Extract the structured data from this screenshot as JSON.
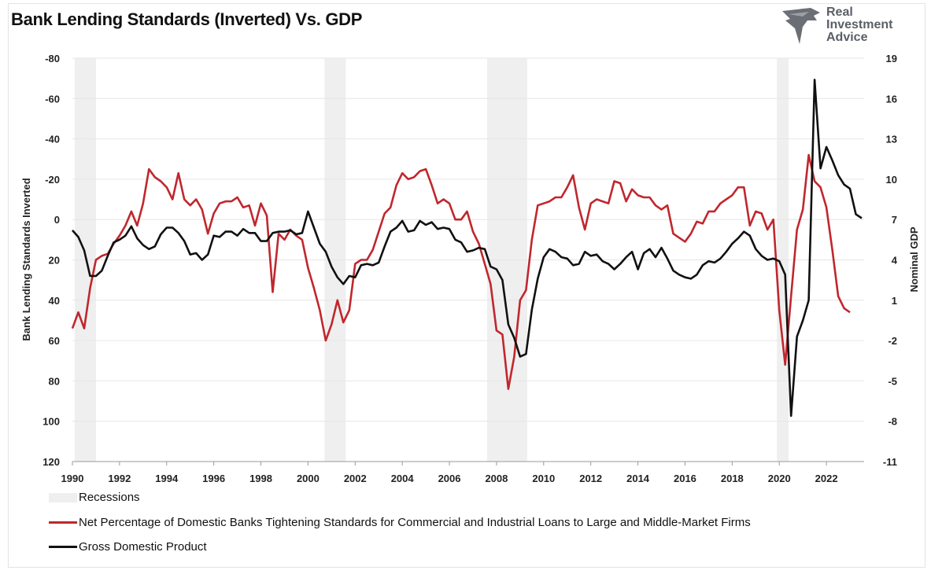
{
  "brand": {
    "line1": "Real",
    "line2": "Investment",
    "line3": "Advice"
  },
  "chart_data": {
    "type": "line",
    "title": "Bank Lending Standards (Inverted) Vs. GDP",
    "ylabel_left": "Bank Lending Standards Inverted",
    "ylabel_right": "Nominal GDP",
    "left_axis": {
      "inverted": true,
      "ylim": [
        -80,
        120
      ],
      "ticks": [
        "-80",
        "-60",
        "-40",
        "-20",
        "0",
        "20",
        "40",
        "60",
        "80",
        "100",
        "120"
      ]
    },
    "right_axis": {
      "ylim": [
        -11,
        19
      ],
      "ticks": [
        "19",
        "16",
        "13",
        "10",
        "7",
        "4",
        "1",
        "-2",
        "-5",
        "-8",
        "-11"
      ]
    },
    "x_range": [
      1990,
      2023.6
    ],
    "x_ticks": [
      "1990",
      "1992",
      "1994",
      "1996",
      "1998",
      "2000",
      "2002",
      "2004",
      "2006",
      "2008",
      "2010",
      "2012",
      "2014",
      "2016",
      "2018",
      "2020",
      "2022"
    ],
    "grid": "horizontal",
    "legend_position": "bottom",
    "legend": [
      "Recessions",
      "Net Percentage of Domestic Banks Tightening Standards for Commercial and Industrial Loans to Large and Middle-Market Firms",
      "Gross Domestic Product"
    ],
    "recessions": [
      [
        1990.1,
        1991.0
      ],
      [
        2000.7,
        2001.6
      ],
      [
        2007.6,
        2009.3
      ],
      [
        2019.9,
        2020.4
      ]
    ],
    "colors": {
      "lending": "#c0272d",
      "gdp": "#111111",
      "recession": "#efefef",
      "grid": "#e6e6e6"
    },
    "series": [
      {
        "name": "Net Percentage of Domestic Banks Tightening Standards for Commercial and Industrial Loans to Large and Middle-Market Firms",
        "axis": "left",
        "points": [
          [
            1990.0,
            54
          ],
          [
            1990.25,
            46
          ],
          [
            1990.5,
            54
          ],
          [
            1990.75,
            34
          ],
          [
            1991.0,
            20
          ],
          [
            1991.25,
            18
          ],
          [
            1991.5,
            17
          ],
          [
            1991.75,
            12
          ],
          [
            1992.0,
            8
          ],
          [
            1992.25,
            3
          ],
          [
            1992.5,
            -4
          ],
          [
            1992.75,
            3
          ],
          [
            1993.0,
            -8
          ],
          [
            1993.25,
            -25
          ],
          [
            1993.5,
            -21
          ],
          [
            1993.75,
            -19
          ],
          [
            1994.0,
            -16
          ],
          [
            1994.25,
            -10
          ],
          [
            1994.5,
            -23
          ],
          [
            1994.75,
            -10
          ],
          [
            1995.0,
            -7
          ],
          [
            1995.25,
            -10
          ],
          [
            1995.5,
            -5
          ],
          [
            1995.75,
            7
          ],
          [
            1996.0,
            -3
          ],
          [
            1996.25,
            -8
          ],
          [
            1996.5,
            -9
          ],
          [
            1996.75,
            -9
          ],
          [
            1997.0,
            -11
          ],
          [
            1997.25,
            -6
          ],
          [
            1997.5,
            -7
          ],
          [
            1997.75,
            3
          ],
          [
            1998.0,
            -8
          ],
          [
            1998.25,
            -2
          ],
          [
            1998.5,
            36
          ],
          [
            1998.75,
            7
          ],
          [
            1999.0,
            10
          ],
          [
            1999.25,
            5
          ],
          [
            1999.5,
            8
          ],
          [
            1999.75,
            10
          ],
          [
            2000.0,
            24
          ],
          [
            2000.25,
            34
          ],
          [
            2000.5,
            45
          ],
          [
            2000.75,
            60
          ],
          [
            2001.0,
            52
          ],
          [
            2001.25,
            40
          ],
          [
            2001.5,
            51
          ],
          [
            2001.75,
            45
          ],
          [
            2002.0,
            22
          ],
          [
            2002.25,
            20
          ],
          [
            2002.5,
            20
          ],
          [
            2002.75,
            15
          ],
          [
            2003.0,
            6
          ],
          [
            2003.25,
            -3
          ],
          [
            2003.5,
            -6
          ],
          [
            2003.75,
            -17
          ],
          [
            2004.0,
            -23
          ],
          [
            2004.25,
            -20
          ],
          [
            2004.5,
            -21
          ],
          [
            2004.75,
            -24
          ],
          [
            2005.0,
            -25
          ],
          [
            2005.25,
            -17
          ],
          [
            2005.5,
            -8
          ],
          [
            2005.75,
            -10
          ],
          [
            2006.0,
            -8
          ],
          [
            2006.25,
            0
          ],
          [
            2006.5,
            0
          ],
          [
            2006.75,
            -4
          ],
          [
            2007.0,
            6
          ],
          [
            2007.25,
            12
          ],
          [
            2007.5,
            22
          ],
          [
            2007.75,
            32
          ],
          [
            2008.0,
            55
          ],
          [
            2008.25,
            57
          ],
          [
            2008.5,
            84
          ],
          [
            2008.75,
            68
          ],
          [
            2009.0,
            40
          ],
          [
            2009.25,
            35
          ],
          [
            2009.5,
            10
          ],
          [
            2009.75,
            -7
          ],
          [
            2010.0,
            -8
          ],
          [
            2010.25,
            -9
          ],
          [
            2010.5,
            -11
          ],
          [
            2010.75,
            -11
          ],
          [
            2011.0,
            -16
          ],
          [
            2011.25,
            -22
          ],
          [
            2011.5,
            -6
          ],
          [
            2011.75,
            5
          ],
          [
            2012.0,
            -8
          ],
          [
            2012.25,
            -10
          ],
          [
            2012.5,
            -9
          ],
          [
            2012.75,
            -8
          ],
          [
            2013.0,
            -19
          ],
          [
            2013.25,
            -18
          ],
          [
            2013.5,
            -9
          ],
          [
            2013.75,
            -15
          ],
          [
            2014.0,
            -12
          ],
          [
            2014.25,
            -11
          ],
          [
            2014.5,
            -11
          ],
          [
            2014.75,
            -7
          ],
          [
            2015.0,
            -5
          ],
          [
            2015.25,
            -7
          ],
          [
            2015.5,
            7
          ],
          [
            2015.75,
            9
          ],
          [
            2016.0,
            11
          ],
          [
            2016.25,
            7
          ],
          [
            2016.5,
            1
          ],
          [
            2016.75,
            2
          ],
          [
            2017.0,
            -4
          ],
          [
            2017.25,
            -4
          ],
          [
            2017.5,
            -8
          ],
          [
            2017.75,
            -10
          ],
          [
            2018.0,
            -12
          ],
          [
            2018.25,
            -16
          ],
          [
            2018.5,
            -16
          ],
          [
            2018.75,
            3
          ],
          [
            2019.0,
            -4
          ],
          [
            2019.25,
            -3
          ],
          [
            2019.5,
            5
          ],
          [
            2019.75,
            0
          ],
          [
            2020.0,
            45
          ],
          [
            2020.25,
            72
          ],
          [
            2020.5,
            38
          ],
          [
            2020.75,
            5
          ],
          [
            2021.0,
            -5
          ],
          [
            2021.25,
            -32
          ],
          [
            2021.5,
            -19
          ],
          [
            2021.75,
            -16
          ],
          [
            2022.0,
            -6
          ],
          [
            2022.25,
            15
          ],
          [
            2022.5,
            38
          ],
          [
            2022.75,
            44
          ],
          [
            2023.0,
            46
          ]
        ]
      },
      {
        "name": "Gross Domestic Product",
        "axis": "right",
        "points": [
          [
            1990.0,
            6.2
          ],
          [
            1990.25,
            5.7
          ],
          [
            1990.5,
            4.7
          ],
          [
            1990.75,
            2.8
          ],
          [
            1991.0,
            2.8
          ],
          [
            1991.25,
            3.2
          ],
          [
            1991.5,
            4.3
          ],
          [
            1991.75,
            5.3
          ],
          [
            1992.0,
            5.5
          ],
          [
            1992.25,
            5.8
          ],
          [
            1992.5,
            6.5
          ],
          [
            1992.75,
            5.6
          ],
          [
            1993.0,
            5.1
          ],
          [
            1993.25,
            4.8
          ],
          [
            1993.5,
            5.0
          ],
          [
            1993.75,
            5.9
          ],
          [
            1994.0,
            6.4
          ],
          [
            1994.25,
            6.4
          ],
          [
            1994.5,
            6.0
          ],
          [
            1994.75,
            5.4
          ],
          [
            1995.0,
            4.4
          ],
          [
            1995.25,
            4.5
          ],
          [
            1995.5,
            4.0
          ],
          [
            1995.75,
            4.4
          ],
          [
            1996.0,
            5.8
          ],
          [
            1996.25,
            5.7
          ],
          [
            1996.5,
            6.1
          ],
          [
            1996.75,
            6.1
          ],
          [
            1997.0,
            5.8
          ],
          [
            1997.25,
            6.3
          ],
          [
            1997.5,
            6.0
          ],
          [
            1997.75,
            6.0
          ],
          [
            1998.0,
            5.4
          ],
          [
            1998.25,
            5.4
          ],
          [
            1998.5,
            6.0
          ],
          [
            1998.75,
            6.1
          ],
          [
            1999.0,
            6.1
          ],
          [
            1999.25,
            6.2
          ],
          [
            1999.5,
            5.9
          ],
          [
            1999.75,
            6.0
          ],
          [
            2000.0,
            7.6
          ],
          [
            2000.25,
            6.4
          ],
          [
            2000.5,
            5.2
          ],
          [
            2000.75,
            4.6
          ],
          [
            2001.0,
            3.5
          ],
          [
            2001.25,
            2.7
          ],
          [
            2001.5,
            2.2
          ],
          [
            2001.75,
            2.8
          ],
          [
            2002.0,
            2.7
          ],
          [
            2002.25,
            3.6
          ],
          [
            2002.5,
            3.7
          ],
          [
            2002.75,
            3.6
          ],
          [
            2003.0,
            3.8
          ],
          [
            2003.25,
            5.0
          ],
          [
            2003.5,
            6.1
          ],
          [
            2003.75,
            6.4
          ],
          [
            2004.0,
            6.9
          ],
          [
            2004.25,
            6.1
          ],
          [
            2004.5,
            6.2
          ],
          [
            2004.75,
            6.9
          ],
          [
            2005.0,
            6.6
          ],
          [
            2005.25,
            6.8
          ],
          [
            2005.5,
            6.3
          ],
          [
            2005.75,
            6.4
          ],
          [
            2006.0,
            6.3
          ],
          [
            2006.25,
            5.5
          ],
          [
            2006.5,
            5.3
          ],
          [
            2006.75,
            4.6
          ],
          [
            2007.0,
            4.7
          ],
          [
            2007.25,
            4.9
          ],
          [
            2007.5,
            4.8
          ],
          [
            2007.75,
            3.5
          ],
          [
            2008.0,
            3.3
          ],
          [
            2008.25,
            2.5
          ],
          [
            2008.5,
            -0.8
          ],
          [
            2008.75,
            -1.8
          ],
          [
            2009.0,
            -3.2
          ],
          [
            2009.25,
            -3.0
          ],
          [
            2009.5,
            0.3
          ],
          [
            2009.75,
            2.6
          ],
          [
            2010.0,
            4.2
          ],
          [
            2010.25,
            4.8
          ],
          [
            2010.5,
            4.6
          ],
          [
            2010.75,
            4.2
          ],
          [
            2011.0,
            4.1
          ],
          [
            2011.25,
            3.6
          ],
          [
            2011.5,
            3.7
          ],
          [
            2011.75,
            4.6
          ],
          [
            2012.0,
            4.3
          ],
          [
            2012.25,
            4.4
          ],
          [
            2012.5,
            3.9
          ],
          [
            2012.75,
            3.7
          ],
          [
            2013.0,
            3.3
          ],
          [
            2013.25,
            3.7
          ],
          [
            2013.5,
            4.2
          ],
          [
            2013.75,
            4.6
          ],
          [
            2014.0,
            3.3
          ],
          [
            2014.25,
            4.5
          ],
          [
            2014.5,
            4.8
          ],
          [
            2014.75,
            4.2
          ],
          [
            2015.0,
            4.9
          ],
          [
            2015.25,
            4.1
          ],
          [
            2015.5,
            3.2
          ],
          [
            2015.75,
            2.9
          ],
          [
            2016.0,
            2.7
          ],
          [
            2016.25,
            2.6
          ],
          [
            2016.5,
            2.9
          ],
          [
            2016.75,
            3.6
          ],
          [
            2017.0,
            3.9
          ],
          [
            2017.25,
            3.8
          ],
          [
            2017.5,
            4.1
          ],
          [
            2017.75,
            4.6
          ],
          [
            2018.0,
            5.2
          ],
          [
            2018.25,
            5.6
          ],
          [
            2018.5,
            6.1
          ],
          [
            2018.75,
            5.8
          ],
          [
            2019.0,
            4.8
          ],
          [
            2019.25,
            4.3
          ],
          [
            2019.5,
            4.0
          ],
          [
            2019.75,
            4.1
          ],
          [
            2020.0,
            3.9
          ],
          [
            2020.25,
            2.9
          ],
          [
            2020.5,
            -7.6
          ],
          [
            2020.75,
            -1.7
          ],
          [
            2021.0,
            -0.5
          ],
          [
            2021.25,
            1.0
          ],
          [
            2021.5,
            17.4
          ],
          [
            2021.75,
            10.8
          ],
          [
            2022.0,
            12.4
          ],
          [
            2022.25,
            11.4
          ],
          [
            2022.5,
            10.3
          ],
          [
            2022.75,
            9.6
          ],
          [
            2023.0,
            9.3
          ],
          [
            2023.25,
            7.4
          ],
          [
            2023.5,
            7.1
          ]
        ]
      }
    ]
  }
}
